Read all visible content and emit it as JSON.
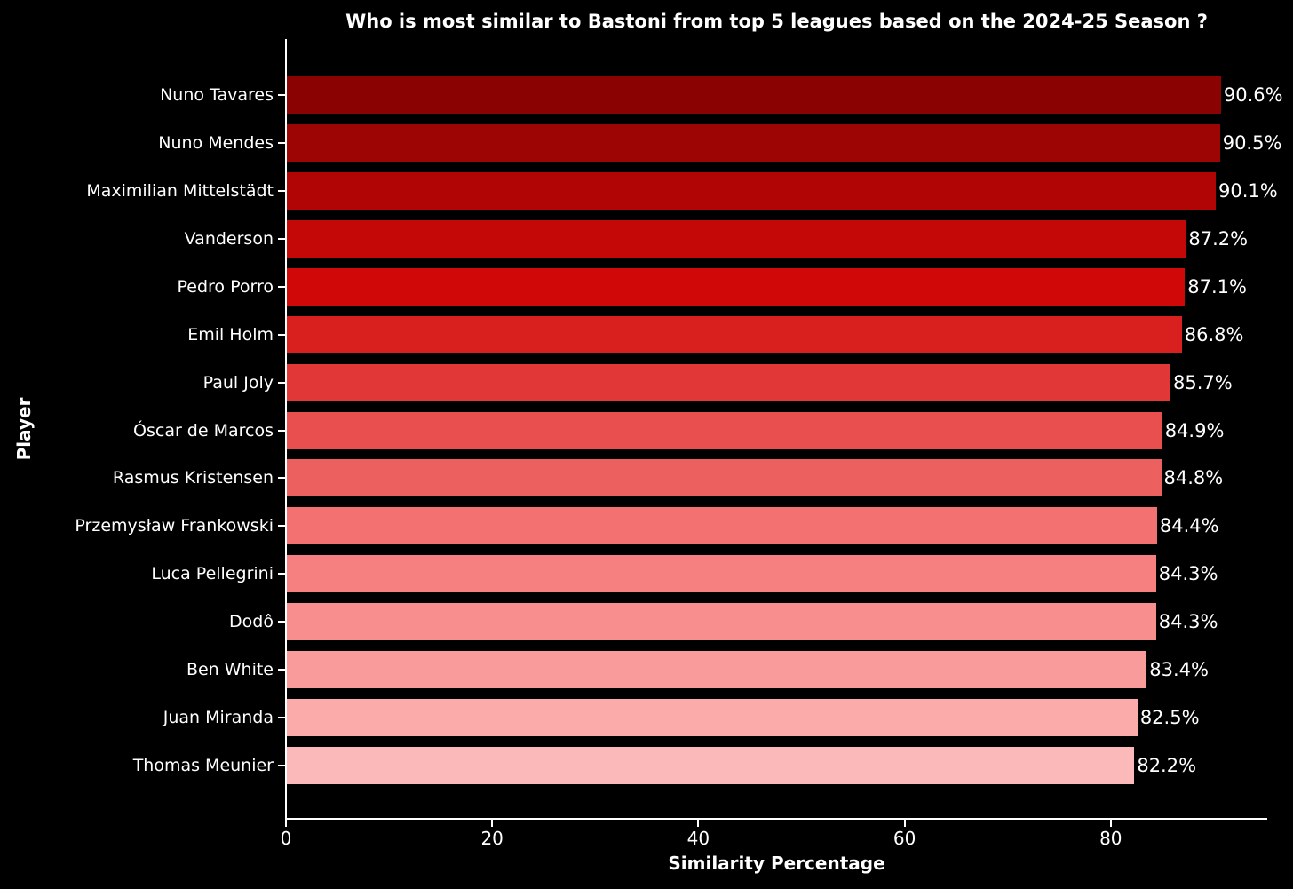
{
  "chart_data": {
    "type": "bar",
    "orientation": "horizontal",
    "title": "Who is most similar to Bastoni from top 5 leagues based on the 2024-25 Season ?",
    "xlabel": "Similarity Percentage",
    "ylabel": "Player",
    "xlim": [
      0,
      95.2
    ],
    "x_tick_values": [
      0,
      20,
      40,
      60,
      80
    ],
    "x_tick_labels": [
      "0",
      "20",
      "40",
      "60",
      "80"
    ],
    "grid": false,
    "legend": "none",
    "background_color": "#000000",
    "text_color": "#ffffff",
    "categories": [
      "Nuno Tavares",
      "Nuno Mendes",
      "Maximilian Mittelstädt",
      "Vanderson",
      "Pedro Porro",
      "Emil Holm",
      "Paul Joly",
      "Óscar de Marcos",
      "Rasmus Kristensen",
      "Przemysław Frankowski",
      "Luca Pellegrini",
      "Dodô",
      "Ben White",
      "Juan Miranda",
      "Thomas Meunier"
    ],
    "values": [
      90.6,
      90.5,
      90.1,
      87.2,
      87.1,
      86.8,
      85.7,
      84.9,
      84.8,
      84.4,
      84.3,
      84.3,
      83.4,
      82.5,
      82.2
    ],
    "value_labels": [
      "90.6%",
      "90.5%",
      "90.1%",
      "87.2%",
      "87.1%",
      "86.8%",
      "85.7%",
      "84.9%",
      "84.8%",
      "84.4%",
      "84.3%",
      "84.3%",
      "83.4%",
      "82.5%",
      "82.2%"
    ],
    "bar_colors": [
      "#8b0202",
      "#9d0404",
      "#b10505",
      "#c40707",
      "#d10808",
      "#da1f1f",
      "#e23737",
      "#ea4f4f",
      "#ec6060",
      "#f47171",
      "#f68080",
      "#f88e8e",
      "#fa9b9b",
      "#fcabab",
      "#fcb9b9"
    ]
  }
}
